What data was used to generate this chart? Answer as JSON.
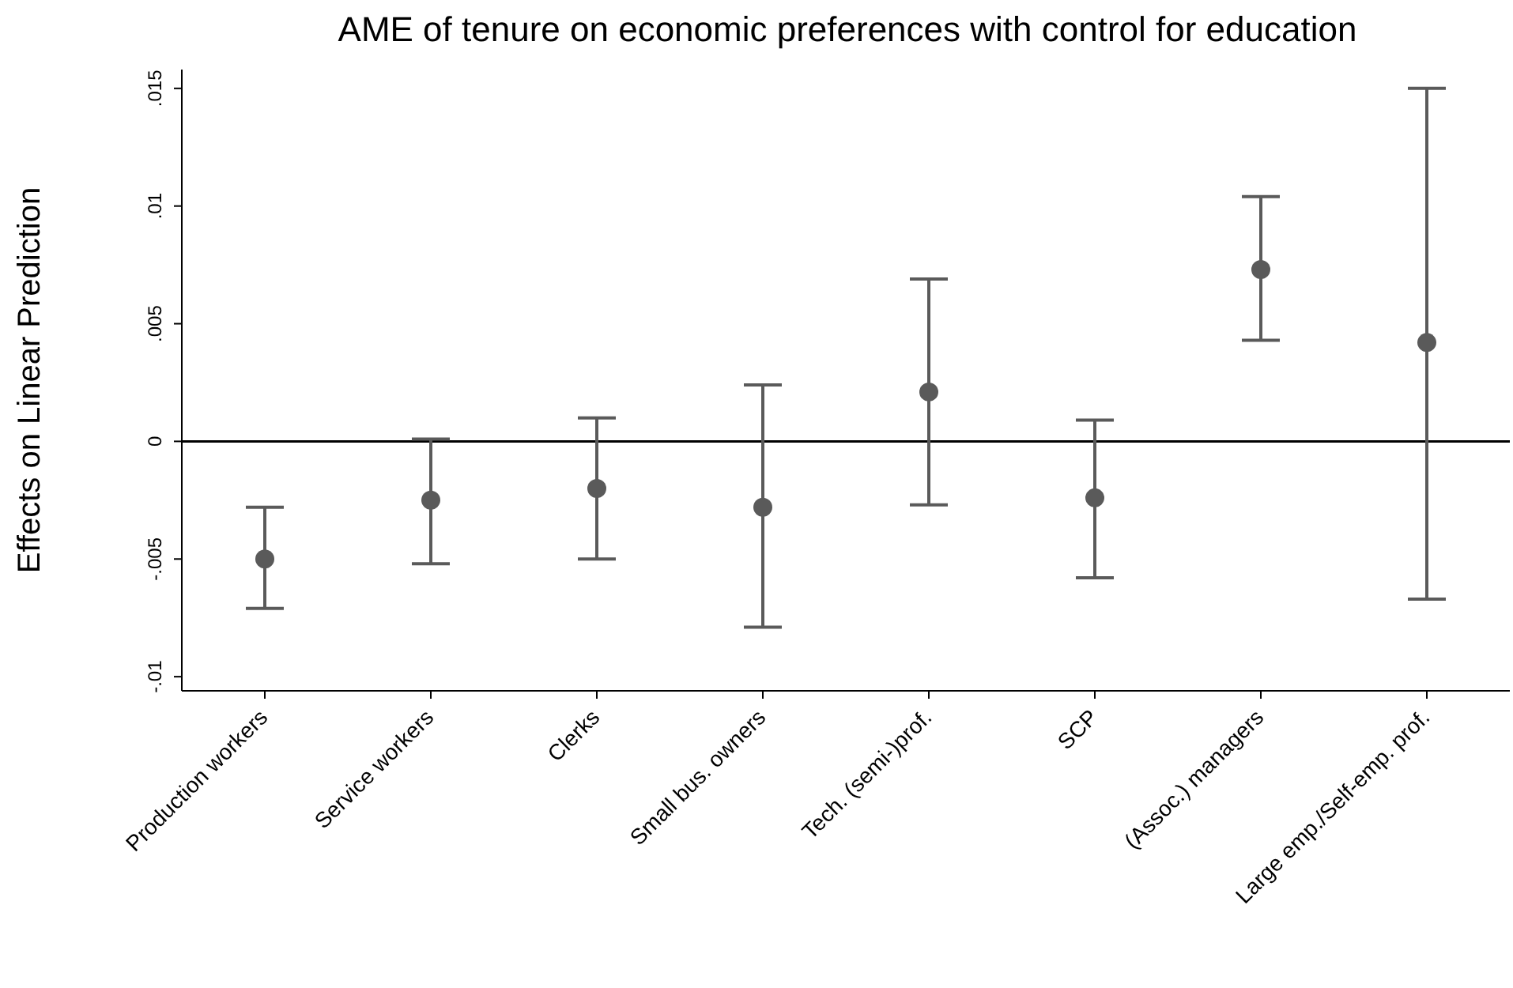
{
  "chart_data": {
    "type": "scatter",
    "title": "AME of tenure on economic preferences with control for education",
    "ylabel": "Effects on Linear Prediction",
    "categories": [
      "Production workers",
      "Service workers",
      "Clerks",
      "Small bus. owners",
      "Tech. (semi-)prof.",
      "SCP",
      "(Assoc.) managers",
      "Large emp./Self-emp. prof."
    ],
    "values": [
      -0.005,
      -0.0025,
      -0.002,
      -0.0028,
      0.0021,
      -0.0024,
      0.0073,
      0.0042
    ],
    "errors": [
      [
        -0.0071,
        -0.0028
      ],
      [
        -0.0052,
        0.0001
      ],
      [
        -0.005,
        0.001
      ],
      [
        -0.0079,
        0.0024
      ],
      [
        -0.0027,
        0.0069
      ],
      [
        -0.0058,
        0.0009
      ],
      [
        0.0043,
        0.0104
      ],
      [
        -0.0067,
        0.015
      ]
    ],
    "color": "#5a5a5a",
    "marker": "circle",
    "grid": false,
    "legend": false,
    "ylim": [
      -0.0106,
      0.0158
    ],
    "yticks": [
      {
        "value": -0.01,
        "label": "-.01"
      },
      {
        "value": -0.005,
        "label": "-.005"
      },
      0,
      {
        "value": 0.005,
        "label": ".005"
      },
      {
        "value": 0.01,
        "label": ".01"
      },
      {
        "value": 0.015,
        "label": ".015"
      }
    ],
    "ref_lines": [
      {
        "axis": "y",
        "value": 0,
        "color": "#000000"
      }
    ]
  }
}
